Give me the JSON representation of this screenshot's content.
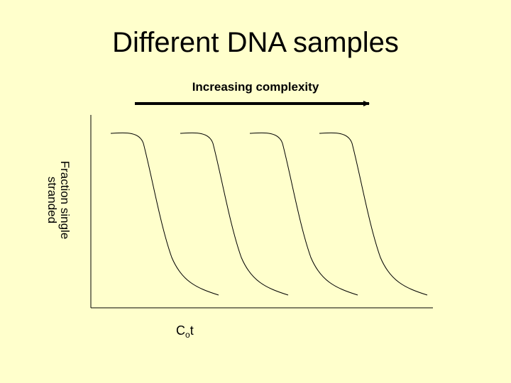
{
  "title": "Different DNA samples",
  "arrow_label": "Increasing complexity",
  "y_axis_label": "Fraction single\nstranded",
  "x_axis_label": {
    "main": "C",
    "sub": "o",
    "tail": "t"
  },
  "curve_count": 4,
  "colors": {
    "background": "#ffffcc",
    "ink": "#000000"
  }
}
